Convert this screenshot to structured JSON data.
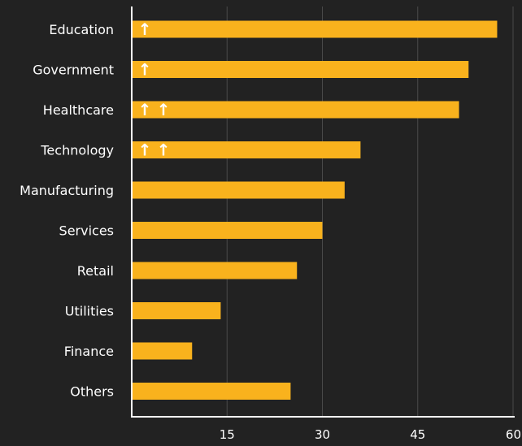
{
  "chart_data": {
    "type": "bar",
    "orientation": "horizontal",
    "categories": [
      "Education",
      "Government",
      "Healthcare",
      "Technology",
      "Manufacturing",
      "Services",
      "Retail",
      "Utilities",
      "Finance",
      "Others"
    ],
    "values": [
      57.5,
      53,
      51.5,
      36,
      33.5,
      30,
      26,
      14,
      9.5,
      25
    ],
    "up_arrows": [
      1,
      1,
      2,
      2,
      0,
      0,
      0,
      0,
      0,
      0
    ],
    "xlim": [
      0,
      60
    ],
    "x_ticks": [
      15,
      30,
      45,
      60
    ],
    "grid": true,
    "title": "",
    "xlabel": "",
    "ylabel": "",
    "arrow_glyph": "↑",
    "colors": {
      "background": "#222222",
      "bar": "#f9b21d",
      "gridline": "#4a4a4a",
      "axis": "#ffffff",
      "text": "#ffffff"
    }
  }
}
